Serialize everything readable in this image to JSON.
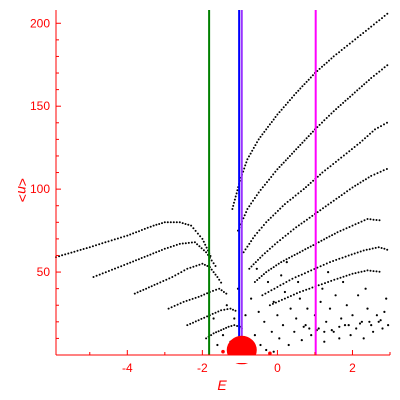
{
  "chart_data": {
    "type": "scatter",
    "xlabel": "E",
    "ylabel": "<n>",
    "xlim": [
      -5.9,
      3.0
    ],
    "ylim": [
      0,
      208
    ],
    "xticks": [
      -4,
      -2,
      0,
      2
    ],
    "yticks": [
      50,
      100,
      150,
      200
    ],
    "grid": false,
    "colors": {
      "axes": "#ff0000",
      "points": "#000000",
      "blob": "#ff0000",
      "line_green": "#008000",
      "line_blue": "#0000ff",
      "line_violet": "#9933ff",
      "line_magenta": "#ff00ff"
    },
    "vlines": [
      {
        "x": -1.82,
        "color": "#008000"
      },
      {
        "x": -0.95,
        "color": "#9933ff"
      },
      {
        "x": -1.02,
        "color": "#0000ff"
      },
      {
        "x": 1.02,
        "color": "#ff00ff"
      }
    ],
    "blob": {
      "x": -0.95,
      "y": 3,
      "r_x": 0.4
    },
    "curves": [
      {
        "x": [
          -5.9,
          -5.0,
          -4.0,
          -3.3,
          -3.0,
          -2.6,
          -2.3,
          -2.0,
          -1.85,
          -1.75
        ],
        "y": [
          59,
          65,
          72,
          78,
          80,
          80,
          78,
          70,
          63,
          58
        ]
      },
      {
        "x": [
          -4.9,
          -4.0,
          -3.0,
          -2.6,
          -2.2,
          -1.9,
          -1.75,
          -1.6
        ],
        "y": [
          47,
          55,
          64,
          67,
          68,
          62,
          57,
          52
        ]
      },
      {
        "x": [
          -3.8,
          -3.2,
          -2.8,
          -2.4,
          -2.0,
          -1.8,
          -1.6,
          -1.45
        ],
        "y": [
          37,
          43,
          47,
          52,
          55,
          53,
          47,
          42
        ]
      },
      {
        "x": [
          -2.9,
          -2.5,
          -2.1,
          -1.8,
          -1.55,
          -1.3
        ],
        "y": [
          28,
          32,
          35,
          38,
          40,
          36
        ]
      },
      {
        "x": [
          -2.4,
          -2.1,
          -1.8,
          -1.5,
          -1.25,
          -1.05
        ],
        "y": [
          18,
          21,
          24,
          27,
          28,
          26
        ]
      },
      {
        "x": [
          -1.9,
          -1.7,
          -1.5,
          -1.3,
          -1.15,
          -1.0,
          -0.9
        ],
        "y": [
          10,
          13,
          15,
          17,
          18,
          17,
          15
        ]
      },
      {
        "x": [
          -1.2,
          -1.0,
          -0.8,
          -0.5,
          0.0,
          0.5,
          1.0,
          1.5,
          2.0,
          2.5,
          3.0
        ],
        "y": [
          88,
          105,
          118,
          130,
          145,
          158,
          170,
          180,
          189,
          198,
          207
        ]
      },
      {
        "x": [
          -1.05,
          -0.8,
          -0.5,
          0.0,
          0.5,
          1.0,
          1.5,
          2.0,
          2.5,
          3.0
        ],
        "y": [
          75,
          88,
          98,
          112,
          124,
          136,
          147,
          157,
          167,
          176
        ]
      },
      {
        "x": [
          -0.9,
          -0.6,
          -0.3,
          0.2,
          0.7,
          1.2,
          1.7,
          2.2,
          2.6,
          3.0
        ],
        "y": [
          62,
          72,
          80,
          91,
          100,
          110,
          119,
          128,
          136,
          141
        ]
      },
      {
        "x": [
          -0.75,
          -0.4,
          0.0,
          0.5,
          1.0,
          1.5,
          2.0,
          2.5,
          3.0
        ],
        "y": [
          52,
          60,
          68,
          77,
          85,
          93,
          101,
          108,
          113
        ]
      },
      {
        "x": [
          -0.6,
          -0.3,
          0.1,
          0.6,
          1.1,
          1.6,
          2.0,
          2.4,
          2.8
        ],
        "y": [
          44,
          50,
          56,
          62,
          68,
          74,
          78,
          82,
          81
        ]
      },
      {
        "x": [
          -0.4,
          0.0,
          0.4,
          0.9,
          1.4,
          1.9,
          2.3,
          2.7,
          3.0
        ],
        "y": [
          36,
          41,
          46,
          51,
          56,
          60,
          63,
          65,
          63
        ]
      },
      {
        "x": [
          -0.2,
          0.2,
          0.6,
          1.1,
          1.6,
          2.0,
          2.4,
          2.8
        ],
        "y": [
          30,
          34,
          38,
          42,
          46,
          49,
          51,
          50
        ]
      }
    ],
    "scatter": [
      [
        -1.7,
        22
      ],
      [
        -1.6,
        6
      ],
      [
        -1.45,
        12
      ],
      [
        -1.35,
        30
      ],
      [
        -1.25,
        8
      ],
      [
        -1.15,
        22
      ],
      [
        -1.05,
        40
      ],
      [
        -0.85,
        24
      ],
      [
        -0.7,
        34
      ],
      [
        -0.6,
        12
      ],
      [
        -0.5,
        26
      ],
      [
        -0.45,
        6
      ],
      [
        -0.35,
        20
      ],
      [
        -0.25,
        44
      ],
      [
        -0.15,
        14
      ],
      [
        -0.1,
        32
      ],
      [
        0.0,
        24
      ],
      [
        0.05,
        10
      ],
      [
        0.15,
        18
      ],
      [
        0.2,
        38
      ],
      [
        0.3,
        6
      ],
      [
        0.35,
        28
      ],
      [
        0.45,
        14
      ],
      [
        0.5,
        22
      ],
      [
        0.6,
        34
      ],
      [
        0.65,
        9
      ],
      [
        0.75,
        18
      ],
      [
        0.8,
        28
      ],
      [
        0.9,
        12
      ],
      [
        1.0,
        24
      ],
      [
        1.1,
        16
      ],
      [
        1.15,
        32
      ],
      [
        1.25,
        8
      ],
      [
        1.3,
        20
      ],
      [
        1.4,
        28
      ],
      [
        1.5,
        14
      ],
      [
        1.55,
        36
      ],
      [
        1.65,
        10
      ],
      [
        1.7,
        22
      ],
      [
        1.8,
        18
      ],
      [
        1.85,
        30
      ],
      [
        1.95,
        12
      ],
      [
        2.0,
        24
      ],
      [
        2.1,
        16
      ],
      [
        2.15,
        36
      ],
      [
        2.25,
        20
      ],
      [
        2.3,
        10
      ],
      [
        2.4,
        28
      ],
      [
        2.5,
        18
      ],
      [
        2.55,
        14
      ],
      [
        2.65,
        24
      ],
      [
        2.7,
        20
      ],
      [
        2.8,
        16
      ],
      [
        2.85,
        26
      ],
      [
        2.95,
        18
      ],
      [
        0.1,
        48
      ],
      [
        0.55,
        44
      ],
      [
        1.2,
        40
      ],
      [
        1.75,
        44
      ],
      [
        2.35,
        40
      ],
      [
        2.9,
        34
      ],
      [
        -0.55,
        52
      ],
      [
        0.25,
        56
      ],
      [
        1.35,
        50
      ],
      [
        0.7,
        17
      ],
      [
        0.85,
        16
      ],
      [
        1.05,
        15
      ],
      [
        1.25,
        14
      ],
      [
        1.45,
        15
      ],
      [
        1.65,
        17
      ],
      [
        1.9,
        18
      ],
      [
        2.2,
        19
      ],
      [
        2.45,
        20
      ],
      [
        2.75,
        21
      ],
      [
        -0.3,
        3
      ],
      [
        -0.1,
        2
      ],
      [
        -1.45,
        2
      ]
    ]
  }
}
